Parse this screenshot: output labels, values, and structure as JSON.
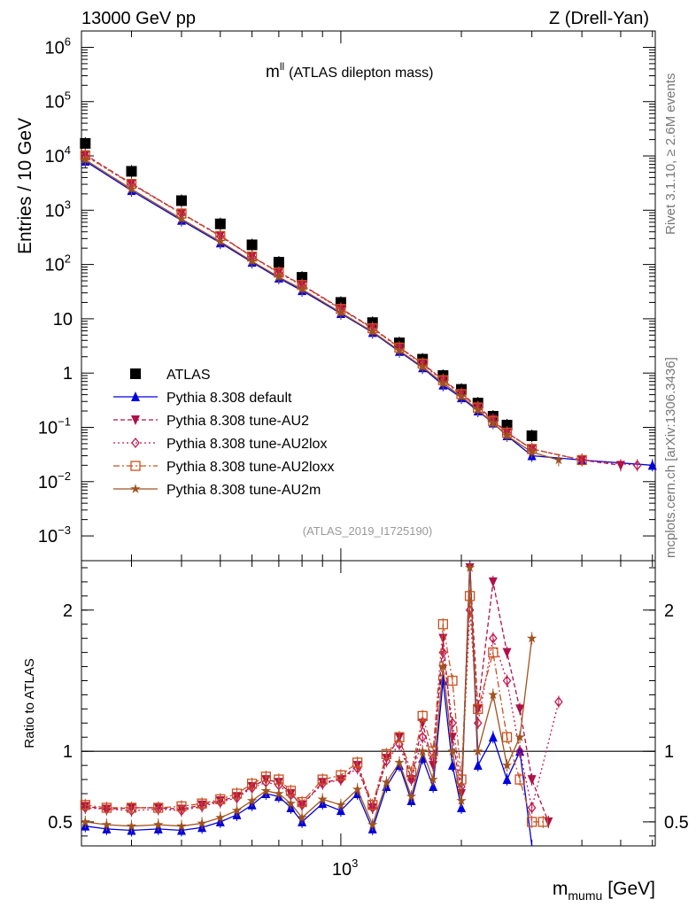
{
  "header": {
    "left": "13000 GeV pp",
    "right": "Z (Drell-Yan)",
    "side_top": "Rivet 3.1.10, ≥ 2.6M events",
    "side_bottom": "mcplots.cern.ch [arXiv:1306.3436]",
    "analysis": "(ATLAS_2019_I1725190)"
  },
  "colors": {
    "atlas": "#000000",
    "default": "#0000dd",
    "au2": "#b0104a",
    "au2lox": "#c2184d",
    "au2loxx": "#c8501e",
    "au2m": "#a0521e"
  },
  "chart_data": [
    {
      "type": "scatter",
      "title": "m^ll (ATLAS dilepton mass)",
      "title_main": "m",
      "title_sup": "ll",
      "title_rest": "(ATLAS dilepton mass)",
      "ylabel": "Entries / 10 GeV",
      "yscale": "log",
      "xscale": "log",
      "xlim": [
        225,
        6100
      ],
      "ylim": [
        0.00035,
        2000000
      ],
      "yticks": [
        {
          "v": 1000000,
          "base": "10",
          "exp": "6"
        },
        {
          "v": 100000,
          "base": "10",
          "exp": "5"
        },
        {
          "v": 10000,
          "base": "10",
          "exp": "4"
        },
        {
          "v": 1000,
          "base": "10",
          "exp": "3"
        },
        {
          "v": 100,
          "base": "10",
          "exp": "2"
        },
        {
          "v": 10,
          "base": "10",
          "exp": ""
        },
        {
          "v": 1,
          "base": "1",
          "exp": ""
        },
        {
          "v": 0.1,
          "base": "10",
          "exp": "−1"
        },
        {
          "v": 0.01,
          "base": "10",
          "exp": "−2"
        },
        {
          "v": 0.001,
          "base": "10",
          "exp": "−3"
        }
      ],
      "series": [
        {
          "name": "ATLAS",
          "key": "atlas",
          "marker": "square",
          "x": [
            230,
            300,
            400,
            500,
            600,
            700,
            800,
            1000,
            1200,
            1400,
            1600,
            1800,
            2000,
            2200,
            2400,
            2600,
            3000
          ],
          "y": [
            17000,
            5200,
            1500,
            560,
            230,
            110,
            58,
            20,
            8.5,
            3.6,
            1.8,
            0.9,
            0.5,
            0.28,
            0.16,
            0.11,
            0.07
          ]
        },
        {
          "name": "Pythia 8.308 default",
          "key": "default",
          "marker": "triangle-up",
          "x": [
            230,
            300,
            400,
            500,
            600,
            700,
            800,
            1000,
            1200,
            1400,
            1600,
            1800,
            2000,
            2200,
            2400,
            2600,
            3000,
            4000,
            6000
          ],
          "y": [
            8000,
            2300,
            650,
            250,
            110,
            56,
            33,
            12.5,
            5.6,
            2.5,
            1.25,
            0.6,
            0.35,
            0.2,
            0.12,
            0.07,
            0.03,
            0.025,
            0.02
          ]
        },
        {
          "name": "Pythia 8.308 tune-AU2",
          "key": "au2",
          "marker": "triangle-down",
          "x": [
            230,
            300,
            400,
            500,
            600,
            700,
            800,
            1000,
            1200,
            1400,
            1600,
            1800,
            2000,
            2200,
            2400,
            2600,
            3000,
            4000,
            5000
          ],
          "y": [
            10500,
            3100,
            880,
            340,
            140,
            72,
            42,
            15.5,
            6.8,
            3.0,
            1.5,
            0.75,
            0.42,
            0.24,
            0.14,
            0.08,
            0.04,
            0.025,
            0.02
          ]
        },
        {
          "name": "Pythia 8.308 tune-AU2lox",
          "key": "au2lox",
          "marker": "diamond-open",
          "x": [
            230,
            300,
            400,
            500,
            600,
            700,
            800,
            1000,
            1200,
            1400,
            1600,
            1800,
            2000,
            2200,
            2400,
            2600,
            3000,
            4000,
            5500
          ],
          "y": [
            10000,
            3000,
            860,
            330,
            138,
            70,
            41,
            15,
            6.6,
            2.9,
            1.45,
            0.72,
            0.4,
            0.23,
            0.13,
            0.08,
            0.04,
            0.025,
            0.02
          ]
        },
        {
          "name": "Pythia 8.308 tune-AU2loxx",
          "key": "au2loxx",
          "marker": "square-open",
          "x": [
            230,
            300,
            400,
            500,
            600,
            700,
            800,
            1000,
            1200,
            1400,
            1600,
            1800,
            2000,
            2200,
            2400,
            2600,
            3000,
            4000
          ],
          "y": [
            10200,
            3050,
            870,
            335,
            140,
            71,
            42,
            15.2,
            6.7,
            2.95,
            1.5,
            0.74,
            0.41,
            0.23,
            0.13,
            0.08,
            0.04,
            0.025
          ]
        },
        {
          "name": "Pythia 8.308 tune-AU2m",
          "key": "au2m",
          "marker": "star",
          "x": [
            230,
            300,
            400,
            500,
            600,
            700,
            800,
            1000,
            1200,
            1400,
            1600,
            1800,
            2000,
            2200,
            2400,
            2600,
            3000,
            3500
          ],
          "y": [
            8500,
            2450,
            690,
            265,
            115,
            59,
            35,
            13,
            5.8,
            2.6,
            1.3,
            0.65,
            0.37,
            0.21,
            0.12,
            0.07,
            0.035,
            0.025
          ]
        }
      ]
    },
    {
      "type": "scatter",
      "ylabel": "Ratio to ATLAS",
      "xlabel_main": "m",
      "xlabel_sub": "mumu",
      "xlabel_unit": "[GeV]",
      "xscale": "log",
      "xlim": [
        225,
        6100
      ],
      "ylim": [
        0.33,
        2.35
      ],
      "yticks": [
        {
          "v": 0.5,
          "label": "0.5"
        },
        {
          "v": 1,
          "label": "1"
        },
        {
          "v": 2,
          "label": "2"
        }
      ],
      "xticks": [
        {
          "v": 1000,
          "base": "10",
          "exp": "3"
        }
      ],
      "reference_line": 1,
      "series": [
        {
          "name": "Pythia 8.308 default",
          "key": "default",
          "marker": "triangle-up",
          "x": [
            230,
            260,
            300,
            350,
            400,
            450,
            500,
            550,
            600,
            650,
            700,
            750,
            800,
            900,
            1000,
            1100,
            1200,
            1300,
            1400,
            1500,
            1600,
            1700,
            1800,
            1900,
            2000,
            2100,
            2200,
            2400,
            2600,
            2800,
            3000
          ],
          "y": [
            0.47,
            0.45,
            0.44,
            0.45,
            0.44,
            0.46,
            0.5,
            0.55,
            0.62,
            0.7,
            0.68,
            0.6,
            0.5,
            0.63,
            0.58,
            0.7,
            0.45,
            0.75,
            0.9,
            0.65,
            0.95,
            0.75,
            1.5,
            0.9,
            0.6,
            2.4,
            0.9,
            1.1,
            0.8,
            1.0,
            0.3
          ]
        },
        {
          "name": "Pythia 8.308 tune-AU2",
          "key": "au2",
          "marker": "triangle-down",
          "x": [
            230,
            260,
            300,
            350,
            400,
            450,
            500,
            550,
            600,
            650,
            700,
            750,
            800,
            900,
            1000,
            1100,
            1200,
            1300,
            1400,
            1500,
            1600,
            1700,
            1800,
            1900,
            2000,
            2100,
            2200,
            2400,
            2600,
            2800,
            3000,
            3300
          ],
          "y": [
            0.61,
            0.59,
            0.6,
            0.6,
            0.59,
            0.62,
            0.65,
            0.68,
            0.75,
            0.8,
            0.78,
            0.7,
            0.62,
            0.78,
            0.8,
            0.9,
            0.6,
            0.95,
            1.1,
            0.8,
            1.2,
            0.9,
            1.8,
            1.1,
            0.7,
            2.3,
            1.3,
            2.2,
            1.7,
            1.3,
            0.8,
            0.5
          ]
        },
        {
          "name": "Pythia 8.308 tune-AU2lox",
          "key": "au2lox",
          "marker": "diamond-open",
          "x": [
            230,
            260,
            300,
            350,
            400,
            450,
            500,
            550,
            600,
            650,
            700,
            750,
            800,
            900,
            1000,
            1100,
            1200,
            1300,
            1400,
            1500,
            1600,
            1700,
            1800,
            1900,
            2000,
            2100,
            2200,
            2400,
            2600,
            2800,
            3000,
            3500
          ],
          "y": [
            0.6,
            0.59,
            0.58,
            0.59,
            0.58,
            0.61,
            0.64,
            0.67,
            0.74,
            0.78,
            0.76,
            0.69,
            0.62,
            0.77,
            0.8,
            0.88,
            0.6,
            0.93,
            1.05,
            0.8,
            1.1,
            0.95,
            1.7,
            1.2,
            0.75,
            2.0,
            1.2,
            1.8,
            1.5,
            1.0,
            0.6,
            1.35
          ]
        },
        {
          "name": "Pythia 8.308 tune-AU2loxx",
          "key": "au2loxx",
          "marker": "square-open",
          "x": [
            230,
            260,
            300,
            350,
            400,
            450,
            500,
            550,
            600,
            650,
            700,
            750,
            800,
            900,
            1000,
            1100,
            1200,
            1300,
            1400,
            1500,
            1600,
            1700,
            1800,
            1900,
            2000,
            2100,
            2200,
            2400,
            2600,
            2800,
            3000,
            3200
          ],
          "y": [
            0.62,
            0.6,
            0.6,
            0.6,
            0.61,
            0.63,
            0.66,
            0.7,
            0.77,
            0.82,
            0.8,
            0.72,
            0.64,
            0.8,
            0.83,
            0.92,
            0.62,
            0.98,
            1.1,
            0.85,
            1.25,
            1.0,
            1.9,
            1.5,
            0.8,
            2.1,
            1.3,
            1.7,
            1.1,
            0.8,
            0.5,
            0.5
          ]
        },
        {
          "name": "Pythia 8.308 tune-AU2m",
          "key": "au2m",
          "marker": "star",
          "x": [
            230,
            260,
            300,
            350,
            400,
            450,
            500,
            550,
            600,
            650,
            700,
            750,
            800,
            900,
            1000,
            1100,
            1200,
            1300,
            1400,
            1500,
            1600,
            1700,
            1800,
            1900,
            2000,
            2100,
            2200,
            2400,
            2600,
            2800,
            3000
          ],
          "y": [
            0.5,
            0.48,
            0.47,
            0.48,
            0.47,
            0.49,
            0.53,
            0.58,
            0.65,
            0.72,
            0.7,
            0.63,
            0.53,
            0.66,
            0.62,
            0.73,
            0.48,
            0.78,
            0.92,
            0.68,
            1.0,
            0.8,
            1.6,
            1.0,
            0.65,
            2.3,
            1.0,
            1.4,
            0.9,
            1.1,
            1.8
          ]
        }
      ]
    }
  ]
}
